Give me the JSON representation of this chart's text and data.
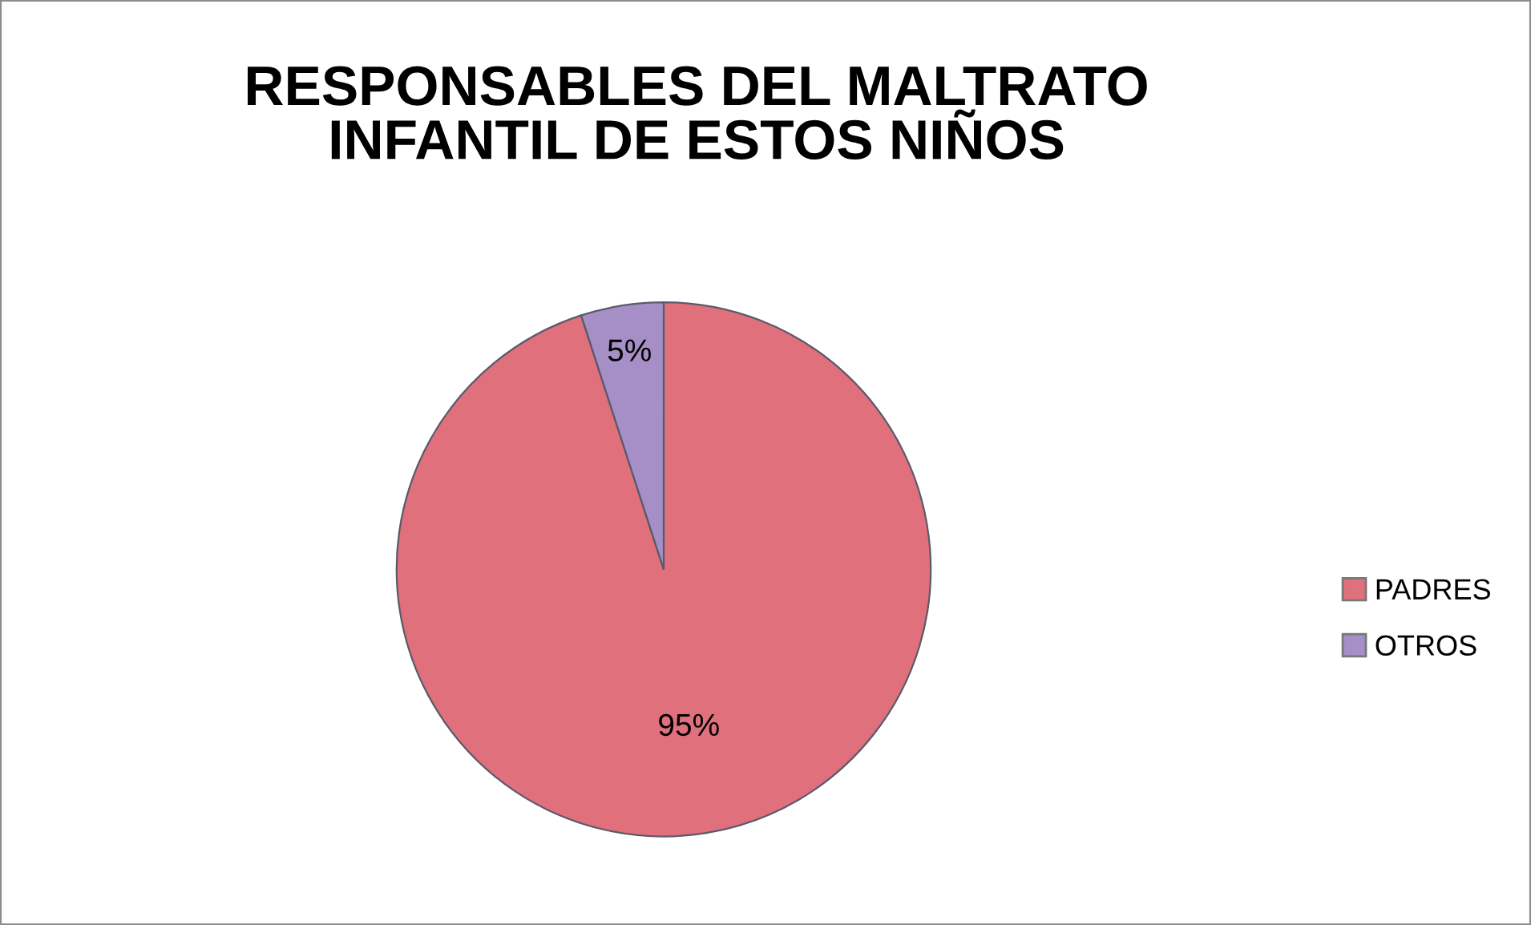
{
  "chart_data": {
    "type": "pie",
    "title": "RESPONSABLES DEL MALTRATO\nINFANTIL DE ESTOS NIÑOS",
    "categories": [
      "PADRES",
      "OTROS"
    ],
    "values": [
      95,
      5
    ],
    "colors": [
      "#e0707c",
      "#a58fc6"
    ],
    "value_labels": [
      "95%",
      "5%"
    ],
    "legend": "right"
  }
}
